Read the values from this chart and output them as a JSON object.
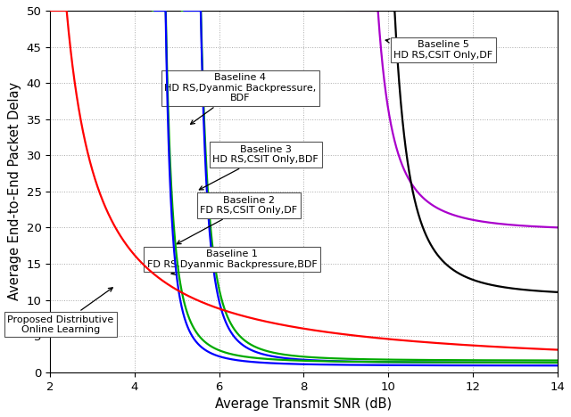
{
  "title": "",
  "xlabel": "Average Transmit SNR (dB)",
  "ylabel": "Average End-to-End Packet Delay",
  "xlim": [
    2,
    14
  ],
  "ylim": [
    0,
    50
  ],
  "xticks": [
    2,
    4,
    6,
    8,
    10,
    12,
    14
  ],
  "yticks": [
    0,
    5,
    10,
    15,
    20,
    25,
    30,
    35,
    40,
    45,
    50
  ],
  "background_color": "#ffffff"
}
